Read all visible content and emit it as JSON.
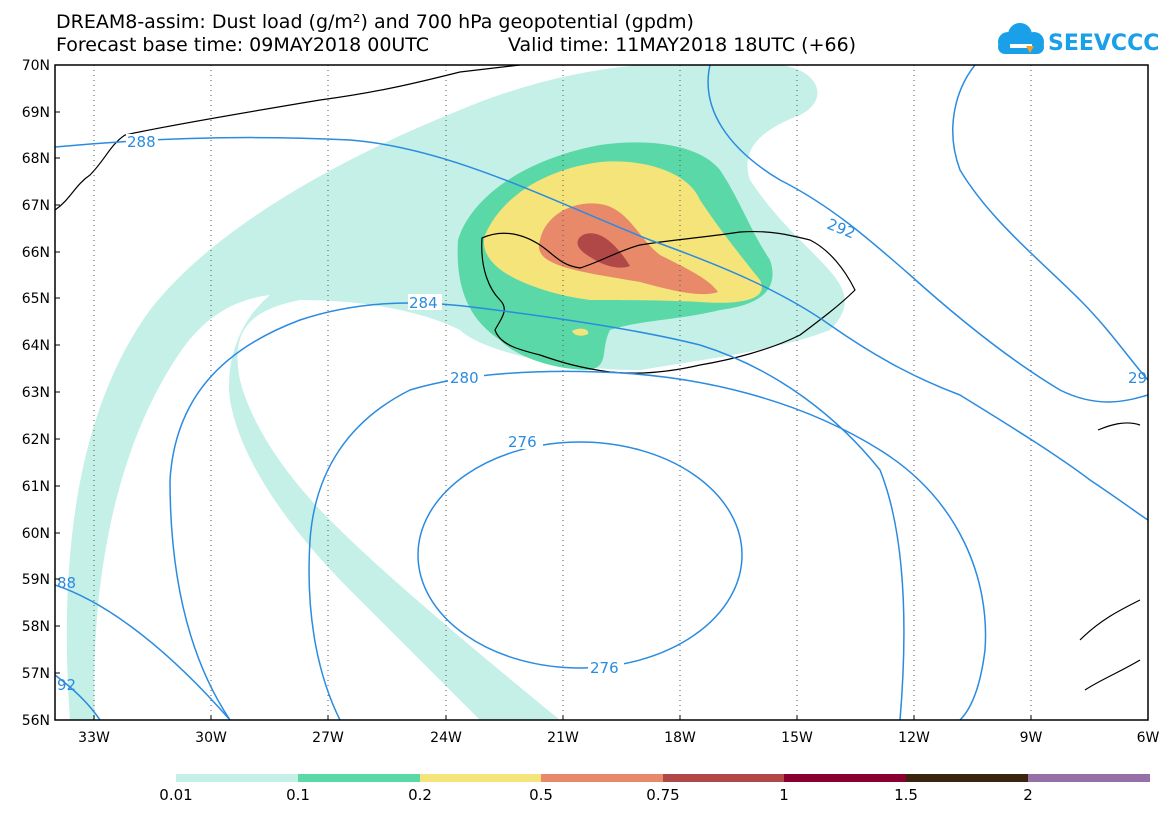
{
  "title_line1": "DREAM8-assim: Dust load (g/m²) and 700 hPa geopotential (gpdm)",
  "title_line2": "Forecast base time: 09MAY2018 00UTC",
  "valid_time": "Valid time: 11MAY2018 18UTC (+66)",
  "logo_text": "SEEVCCC",
  "lat_labels": [
    "70N",
    "69N",
    "68N",
    "67N",
    "66N",
    "65N",
    "64N",
    "63N",
    "62N",
    "61N",
    "60N",
    "59N",
    "58N",
    "57N",
    "56N"
  ],
  "lon_labels": [
    "33W",
    "30W",
    "27W",
    "24W",
    "21W",
    "18W",
    "15W",
    "12W",
    "9W",
    "6W"
  ],
  "contour_labels": {
    "c288a": "288",
    "c292a": "292",
    "c284": "284",
    "c280": "280",
    "c276a": "276",
    "c276b": "276",
    "c288b": "88",
    "c292b": "92",
    "c29edge": "29"
  },
  "colors": {
    "contour": "#2a8be0",
    "level_001": "#c4f0e8",
    "level_01": "#5ad8a8",
    "level_02": "#f4e47a",
    "level_05": "#e88a6a",
    "level_075": "#b04848",
    "level_1": "#880030",
    "level_15": "#3a2410",
    "level_2": "#9870a8"
  },
  "colorbar_labels": [
    "0.01",
    "0.1",
    "0.2",
    "0.5",
    "0.75",
    "1",
    "1.5",
    "2"
  ]
}
